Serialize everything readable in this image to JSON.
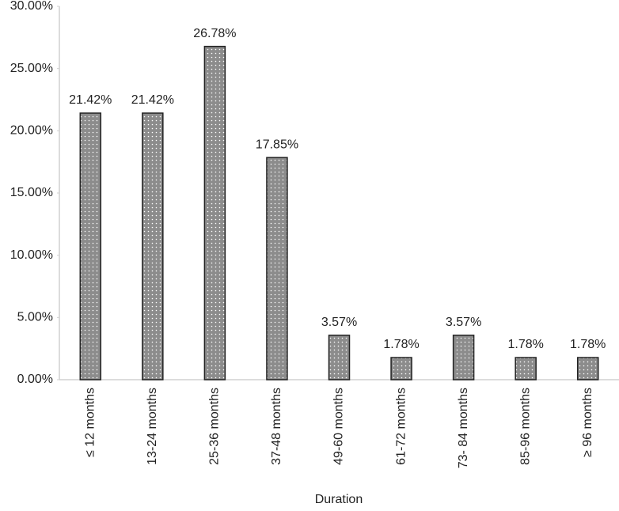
{
  "chart_data": {
    "type": "bar",
    "x_label": "Duration",
    "categories": [
      "≤ 12 months",
      "13-24 months",
      "25-36 months",
      "37-48 months",
      "49-60 months",
      "61-72 months",
      "73- 84 months",
      "85-96 months",
      "≥ 96 months"
    ],
    "values": [
      21.42,
      21.42,
      26.78,
      17.85,
      3.57,
      1.78,
      3.57,
      1.78,
      1.78
    ],
    "value_labels": [
      "21.42%",
      "21.42%",
      "26.78%",
      "17.85%",
      "3.57%",
      "1.78%",
      "3.57%",
      "1.78%",
      "1.78%"
    ],
    "color": "#8c8c8c",
    "ylim": [
      0,
      30
    ],
    "yticks": [
      {
        "value": 0,
        "label": "0.00%"
      },
      {
        "value": 5,
        "label": "5.00%"
      },
      {
        "value": 10,
        "label": "10.00%"
      },
      {
        "value": 15,
        "label": "15.00%"
      },
      {
        "value": 20,
        "label": "20.00%"
      },
      {
        "value": 25,
        "label": "25.00%"
      },
      {
        "value": 30,
        "label": "30.00%"
      }
    ],
    "grid": false
  }
}
